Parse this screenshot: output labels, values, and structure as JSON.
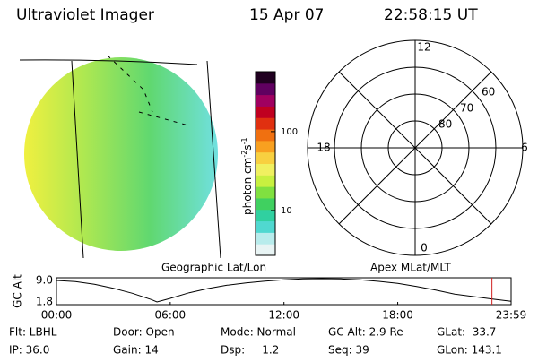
{
  "header": {
    "title": "Ultraviolet Imager",
    "date": "15 Apr 07",
    "time": "22:58:15 UT"
  },
  "image_panel": {
    "label": "Geographic Lat/Lon"
  },
  "colorbar": {
    "label": "photon cm",
    "exp1": "-2",
    "unit2": "s",
    "exp2": "-1",
    "clim": [
      2.7,
      575
    ],
    "log": true,
    "ticks": [
      10,
      100
    ],
    "colors": [
      "#e8f4f4",
      "#b8ecec",
      "#50d8d0",
      "#30d0a0",
      "#40d060",
      "#80e040",
      "#c8f040",
      "#f0f060",
      "#f8d040",
      "#f8a020",
      "#f07010",
      "#e03010",
      "#c00020",
      "#a00060",
      "#600060",
      "#200020"
    ]
  },
  "polar": {
    "label": "Apex MLat/MLT",
    "lat_lim": [
      90,
      50
    ],
    "lat_ticks": [
      80,
      70,
      60
    ],
    "mlt_ticks": [
      0,
      6,
      12,
      18
    ]
  },
  "altitude": {
    "ylabel": "GC Alt",
    "ylim": [
      0.9,
      9.9
    ],
    "yticks": [
      1.8,
      {
        "value": 9,
        "label": "9.0"
      }
    ],
    "xlim": [
      0,
      23.98
    ],
    "xticks": [
      {
        "value": 0,
        "label": "00:00"
      },
      {
        "value": 6,
        "label": "06:00"
      },
      {
        "value": 12,
        "label": "12:00"
      },
      {
        "value": 18,
        "label": "18:00"
      },
      {
        "value": 23.98,
        "label": "23:59"
      }
    ],
    "x": [
      0,
      1,
      2,
      3,
      4,
      5,
      5.3,
      6,
      7,
      8,
      9,
      10,
      11,
      12,
      13,
      14,
      15,
      16,
      17,
      18,
      19,
      20,
      21,
      22,
      23,
      23.98
    ],
    "values": [
      9.0,
      8.6,
      7.7,
      6.4,
      4.7,
      2.6,
      1.8,
      3.0,
      4.9,
      6.3,
      7.4,
      8.2,
      8.8,
      9.2,
      9.5,
      9.6,
      9.5,
      9.2,
      8.7,
      8.0,
      7.0,
      5.8,
      4.4,
      3.6,
      2.8,
      2.0
    ],
    "marker_x": 22.97,
    "marker_color": "#d02020"
  },
  "status": {
    "rows": [
      [
        "Flt: LBHL",
        "Door: Open",
        "Mode: Normal",
        "GC Alt: 2.9 Re",
        "GLat:  33.7"
      ],
      [
        "IP: 36.0",
        "Gain: 14",
        "Dsp:     1.2",
        "Seq: 39",
        "GLon: 143.1"
      ]
    ]
  }
}
